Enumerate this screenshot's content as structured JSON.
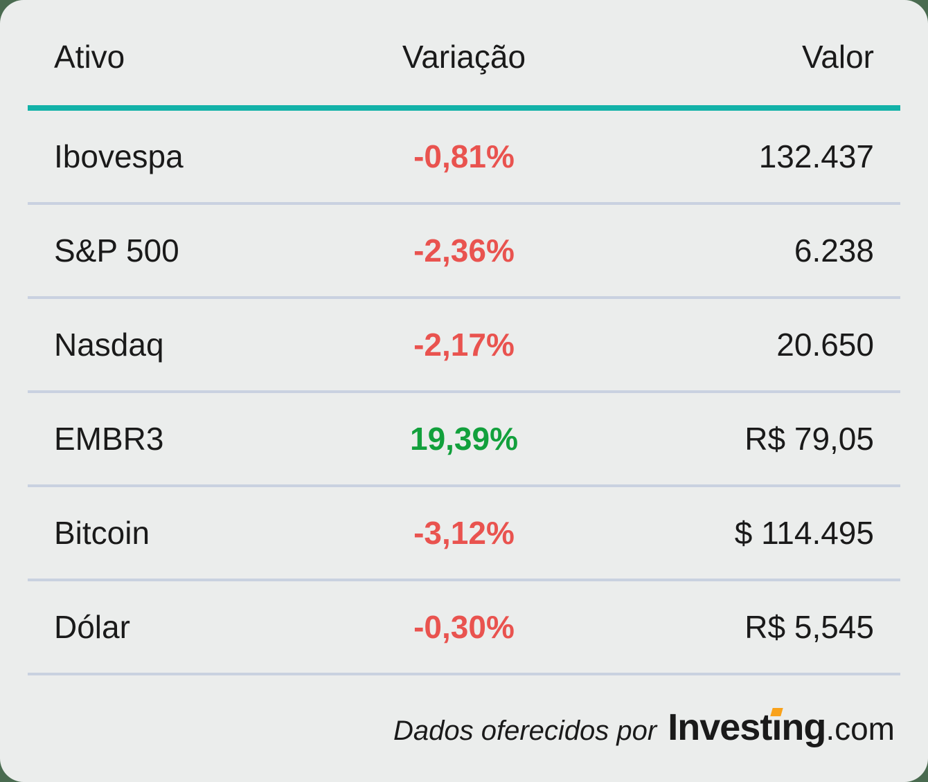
{
  "chart_data": {
    "type": "table",
    "columns": [
      "Ativo",
      "Variação",
      "Valor"
    ],
    "rows": [
      [
        "Ibovespa",
        "-0,81%",
        "132.437"
      ],
      [
        "S&P 500",
        "-2,36%",
        "6.238"
      ],
      [
        "Nasdaq",
        "-2,17%",
        "20.650"
      ],
      [
        "EMBR3",
        "19,39%",
        "R$ 79,05"
      ],
      [
        "Bitcoin",
        "-3,12%",
        "$ 114.495"
      ],
      [
        "Dólar",
        "-0,30%",
        "R$ 5,545"
      ]
    ]
  },
  "footer": {
    "attribution": "Dados oferecidos por",
    "logo": {
      "brand_prefix": "Invest",
      "brand_i": "ı",
      "brand_suffix": "ng",
      "tld": ".com"
    }
  },
  "colors": {
    "page_background": "#4a6b50",
    "card_background": "#ebedec",
    "text": "#1a1a1a",
    "negative_red": "#e9534f",
    "positive_green": "#12a03c",
    "accent_teal": "#12b2a8",
    "row_divider": "#c9d1e0",
    "logo_orange": "#f9a21b"
  }
}
